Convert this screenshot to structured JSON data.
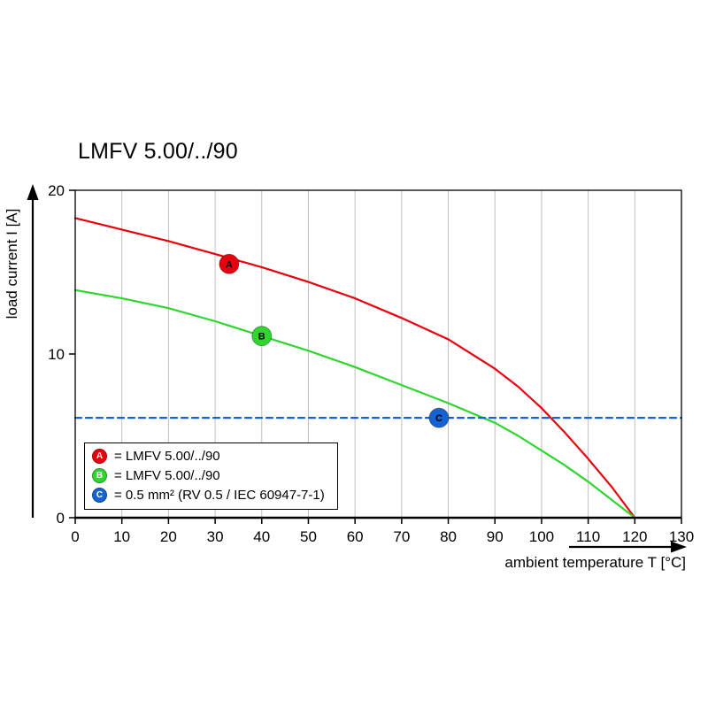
{
  "chart_data": {
    "type": "line",
    "title": "LMFV 5.00/../90",
    "xlabel": "ambient temperature T [°C]",
    "ylabel": "load current I [A]",
    "xlim": [
      0,
      130
    ],
    "ylim": [
      0,
      20
    ],
    "x_ticks": [
      0,
      10,
      20,
      30,
      40,
      50,
      60,
      70,
      80,
      90,
      100,
      110,
      120,
      130
    ],
    "y_ticks": [
      0,
      10,
      20
    ],
    "grid": "vertical",
    "colors": {
      "grid": "#c0c0c0",
      "axis": "#000000"
    },
    "series": [
      {
        "name": "A",
        "label": "LMFV 5.00/../90",
        "color": "#e8000d",
        "style": "solid",
        "marker_at": {
          "x": 33,
          "y": 15.5
        },
        "points": [
          [
            0,
            18.3
          ],
          [
            10,
            17.6
          ],
          [
            20,
            16.9
          ],
          [
            30,
            16.1
          ],
          [
            40,
            15.3
          ],
          [
            50,
            14.4
          ],
          [
            60,
            13.4
          ],
          [
            70,
            12.2
          ],
          [
            80,
            10.9
          ],
          [
            90,
            9.1
          ],
          [
            95,
            8.0
          ],
          [
            100,
            6.7
          ],
          [
            105,
            5.2
          ],
          [
            110,
            3.6
          ],
          [
            115,
            1.9
          ],
          [
            120,
            0
          ]
        ]
      },
      {
        "name": "B",
        "label": "LMFV 5.00/../90",
        "color": "#30d530",
        "style": "solid",
        "marker_at": {
          "x": 40,
          "y": 11.1
        },
        "points": [
          [
            0,
            13.9
          ],
          [
            10,
            13.4
          ],
          [
            20,
            12.8
          ],
          [
            30,
            12.0
          ],
          [
            40,
            11.1
          ],
          [
            50,
            10.2
          ],
          [
            60,
            9.2
          ],
          [
            70,
            8.1
          ],
          [
            80,
            7.0
          ],
          [
            90,
            5.8
          ],
          [
            95,
            5.0
          ],
          [
            100,
            4.1
          ],
          [
            105,
            3.2
          ],
          [
            110,
            2.2
          ],
          [
            115,
            1.1
          ],
          [
            120,
            0
          ]
        ]
      },
      {
        "name": "C",
        "label": "0.5 mm² (RV 0.5 / IEC 60947-7-1)",
        "color": "#1563d2",
        "style": "dashed",
        "marker_at": {
          "x": 78,
          "y": 6.1
        },
        "points": [
          [
            0,
            6.1
          ],
          [
            130,
            6.1
          ]
        ]
      }
    ],
    "legend": [
      {
        "key": "A",
        "color": "#e8000d",
        "text": "= LMFV 5.00/../90"
      },
      {
        "key": "B",
        "color": "#30d530",
        "text": "= LMFV 5.00/../90"
      },
      {
        "key": "C",
        "color": "#1563d2",
        "text": "= 0.5 mm² (RV 0.5 / IEC 60947-7-1)"
      }
    ],
    "legend_position": "lower-left"
  }
}
